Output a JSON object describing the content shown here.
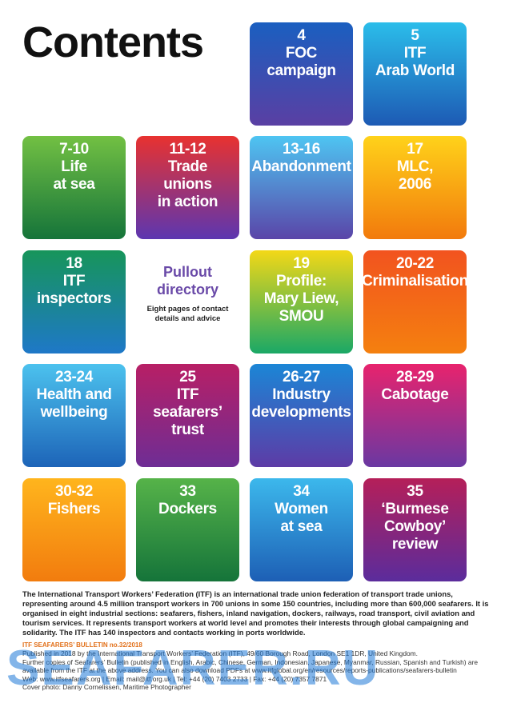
{
  "header": {
    "title": "Contents"
  },
  "tiles": [
    {
      "pages": "4",
      "label": [
        "FOC",
        "campaign"
      ],
      "gradient": [
        "#1a5fc0",
        "#5a3fa3"
      ]
    },
    {
      "pages": "5",
      "label": [
        "ITF",
        "Arab World"
      ],
      "gradient": [
        "#2bbdea",
        "#1d5ab4"
      ]
    },
    {
      "pages": "7-10",
      "label": [
        "Life",
        "at sea"
      ],
      "gradient": [
        "#72c043",
        "#15743a"
      ]
    },
    {
      "pages": "11-12",
      "label": [
        "Trade",
        "unions",
        "in action"
      ],
      "gradient": [
        "#e8322f",
        "#5c36b0"
      ]
    },
    {
      "pages": "13-16",
      "label": [
        "Abandonment"
      ],
      "gradient": [
        "#4ec5f2",
        "#5a45a8"
      ]
    },
    {
      "pages": "17",
      "label": [
        "MLC,",
        "2006"
      ],
      "gradient": [
        "#ffd21a",
        "#f27a0c"
      ]
    },
    {
      "pages": "18",
      "label": [
        "ITF",
        "inspectors"
      ],
      "gradient": [
        "#17955a",
        "#1e78c8"
      ]
    },
    {
      "pages": "19",
      "label": [
        "Profile:",
        "Mary Liew,",
        "SMOU"
      ],
      "gradient": [
        "#f3d817",
        "#1aa866"
      ]
    },
    {
      "pages": "20-22",
      "label": [
        "Criminalisation"
      ],
      "gradient": [
        "#f2531f",
        "#f4800f"
      ]
    },
    {
      "pages": "23-24",
      "label": [
        "Health and",
        "wellbeing"
      ],
      "gradient": [
        "#4cc2ee",
        "#1d64b8"
      ]
    },
    {
      "pages": "25",
      "label": [
        "ITF",
        "seafarers’",
        "trust"
      ],
      "gradient": [
        "#b81f65",
        "#6e2d95"
      ]
    },
    {
      "pages": "26-27",
      "label": [
        "Industry",
        "developments"
      ],
      "gradient": [
        "#1b86d6",
        "#5d3ba6"
      ]
    },
    {
      "pages": "28-29",
      "label": [
        "Cabotage"
      ],
      "gradient": [
        "#e8236d",
        "#6a38a2"
      ]
    },
    {
      "pages": "30-32",
      "label": [
        "Fishers"
      ],
      "gradient": [
        "#ffb51d",
        "#f27c0e"
      ]
    },
    {
      "pages": "33",
      "label": [
        "Dockers"
      ],
      "gradient": [
        "#56b349",
        "#15743a"
      ]
    },
    {
      "pages": "34",
      "label": [
        "Women",
        "at sea"
      ],
      "gradient": [
        "#3cb8ec",
        "#1d5fb5"
      ]
    },
    {
      "pages": "35",
      "label": [
        "‘Burmese",
        "Cowboy’",
        "review"
      ],
      "gradient": [
        "#b51f59",
        "#5b2c9c"
      ]
    }
  ],
  "pullout": {
    "label": [
      "Pullout",
      "directory"
    ],
    "note": "Eight pages of contact details and advice"
  },
  "footer": {
    "intro": "The International Transport Workers’ Federation (ITF) is an international trade union federation of transport trade unions, representing around 4.5 million transport workers in 700 unions in some 150 countries, including more than 600,000 seafarers. It is organised in eight industrial sections: seafarers, fishers, inland navigation, dockers, railways, road transport, civil aviation and tourism services. It represents transport workers at world level and promotes their interests through global campaigning and solidarity. The ITF has 140 inspectors and contacts working in ports worldwide.",
    "bulletin": "ITF SEAFARERS’ BULLETIN no.32/2018",
    "lines": [
      "Published in 2018 by the International Transport Workers’ Federation (ITF), 49/60 Borough Road, London SE1 1DR, United Kingdom.",
      "Further copies of Seafarers’ Bulletin (published in English, Arabic, Chinese, German, Indonesian, Japanese, Myanmar, Russian, Spanish and Turkish) are available from the ITF at the above address. You can also download PDFs at www.itfglobal.org/en/resources/reports-publications/seafarers-bulletin",
      "Web: www.itfseafarers.org | Email: mail@itf.org.uk | Tel: +44 (20) 7403 2733 | Fax: +44 (20) 7357 7871",
      "Cover photo: Danny Cornelissen, Maritime Photographer"
    ]
  },
  "watermark": "SEAFARER.RU"
}
